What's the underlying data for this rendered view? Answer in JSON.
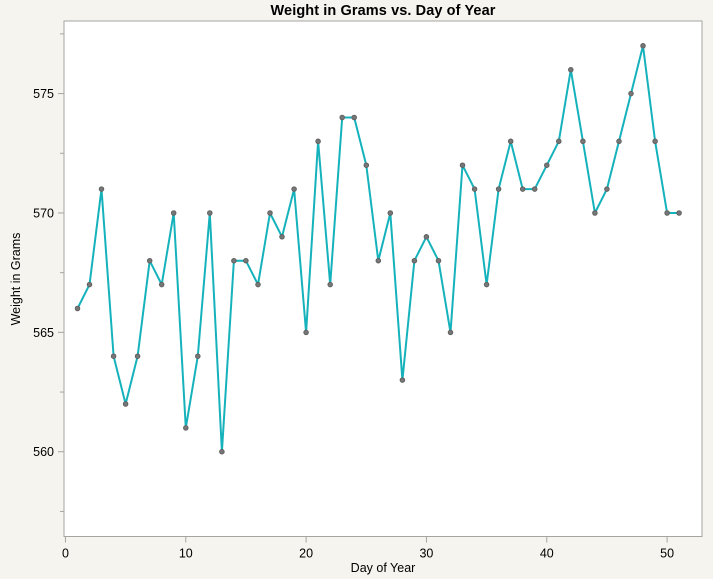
{
  "chart_data": {
    "type": "line",
    "title": "Weight in Grams vs. Day of Year",
    "xlabel": "Day of Year",
    "ylabel": "Weight in Grams",
    "x": [
      1,
      2,
      3,
      4,
      5,
      6,
      7,
      8,
      9,
      10,
      11,
      12,
      13,
      14,
      15,
      16,
      17,
      18,
      19,
      20,
      21,
      22,
      23,
      24,
      25,
      26,
      27,
      28,
      29,
      30,
      31,
      32,
      33,
      34,
      35,
      36,
      37,
      38,
      39,
      40,
      41,
      42,
      43,
      44,
      45,
      46,
      47,
      48,
      49,
      50,
      51
    ],
    "values": [
      566,
      567,
      571,
      564,
      562,
      564,
      568,
      567,
      570,
      561,
      564,
      570,
      560,
      568,
      568,
      567,
      570,
      569,
      571,
      565,
      573,
      567,
      574,
      574,
      572,
      568,
      570,
      563,
      568,
      569,
      568,
      565,
      572,
      571,
      567,
      571,
      573,
      571,
      571,
      572,
      573,
      576,
      573,
      570,
      571,
      573,
      575,
      577,
      573,
      570,
      570
    ],
    "xlim": [
      -0.12,
      52.9
    ],
    "ylim": [
      556.45,
      578.04
    ],
    "x_ticks": [
      0,
      10,
      20,
      30,
      40,
      50
    ],
    "y_ticks": [
      560,
      565,
      570,
      575
    ],
    "y_minor_ticks": [
      557.5,
      562.5,
      567.5,
      572.5,
      577.5
    ],
    "grid": false,
    "legend": "none",
    "line_color": "#15b2bc",
    "marker_color": "#777777",
    "marker_edge_color": "#5d5d5d",
    "axis_color": "#a5a5a0",
    "tick_label_color": "#000000",
    "plot_bg": "#ffffff",
    "page_bg": "#f5f4ef"
  }
}
